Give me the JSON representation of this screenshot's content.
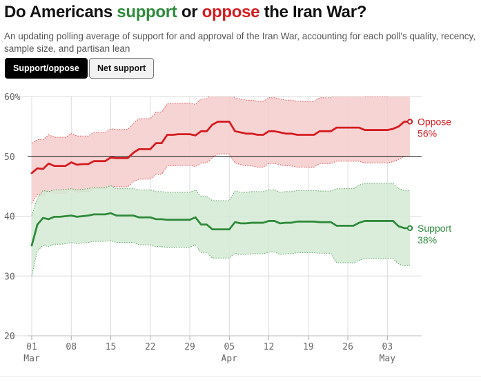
{
  "header": {
    "title_parts": {
      "prefix": "Do Americans ",
      "support_word": "support",
      "middle": " or ",
      "oppose_word": "oppose",
      "suffix": " the Iran War?"
    },
    "subtitle": "An updating polling average of support for and approval of the Iran War, accounting for each poll's quality, recency, sample size, and partisan lean"
  },
  "toggle": {
    "support_oppose_label": "Support/oppose",
    "net_support_label": "Net support",
    "selected": "Support/oppose"
  },
  "colors": {
    "oppose": "#d41c20",
    "support": "#2f8a3b",
    "oppose_band": "#f6cccc",
    "support_band": "#d3ead4"
  },
  "chart_data": {
    "type": "line",
    "x_start_day": "Mar 01",
    "x": [
      "Mar 01",
      "Mar 02",
      "Mar 03",
      "Mar 04",
      "Mar 05",
      "Mar 06",
      "Mar 07",
      "Mar 08",
      "Mar 09",
      "Mar 10",
      "Mar 11",
      "Mar 12",
      "Mar 13",
      "Mar 14",
      "Mar 15",
      "Mar 16",
      "Mar 17",
      "Mar 18",
      "Mar 19",
      "Mar 20",
      "Mar 21",
      "Mar 22",
      "Mar 23",
      "Mar 24",
      "Mar 25",
      "Mar 26",
      "Mar 27",
      "Mar 28",
      "Mar 29",
      "Mar 30",
      "Mar 31",
      "Apr 01",
      "Apr 02",
      "Apr 03",
      "Apr 04",
      "Apr 05",
      "Apr 06",
      "Apr 07",
      "Apr 08",
      "Apr 09",
      "Apr 10",
      "Apr 11",
      "Apr 12",
      "Apr 13",
      "Apr 14",
      "Apr 15",
      "Apr 16",
      "Apr 17",
      "Apr 18",
      "Apr 19",
      "Apr 20",
      "Apr 21",
      "Apr 22",
      "Apr 23",
      "Apr 24",
      "Apr 25",
      "Apr 26",
      "Apr 27",
      "Apr 28",
      "Apr 29",
      "Apr 30",
      "May 01",
      "May 02",
      "May 03",
      "May 04",
      "May 05",
      "May 06",
      "May 07"
    ],
    "ylim": [
      20,
      60
    ],
    "yticks": [
      20,
      30,
      40,
      50,
      60
    ],
    "ytick_labels": [
      "20",
      "30",
      "40",
      "50",
      "60%"
    ],
    "reference_line": 50,
    "xticks": [
      {
        "day": "Mar 01",
        "label": "01",
        "month": "Mar"
      },
      {
        "day": "Mar 08",
        "label": "08",
        "month": ""
      },
      {
        "day": "Mar 15",
        "label": "15",
        "month": ""
      },
      {
        "day": "Mar 22",
        "label": "22",
        "month": ""
      },
      {
        "day": "Mar 29",
        "label": "29",
        "month": ""
      },
      {
        "day": "Apr 05",
        "label": "05",
        "month": "Apr"
      },
      {
        "day": "Apr 12",
        "label": "12",
        "month": ""
      },
      {
        "day": "Apr 19",
        "label": "19",
        "month": ""
      },
      {
        "day": "Apr 26",
        "label": "26",
        "month": ""
      },
      {
        "day": "May 03",
        "label": "03",
        "month": "May"
      }
    ],
    "series": [
      {
        "name": "Oppose",
        "end_label": "56%",
        "values": [
          47.2,
          48.0,
          47.9,
          48.8,
          48.4,
          48.4,
          48.4,
          49.0,
          48.6,
          48.7,
          48.7,
          49.2,
          49.2,
          49.2,
          49.8,
          49.7,
          49.7,
          49.7,
          50.6,
          51.2,
          51.2,
          51.2,
          52.2,
          52.2,
          53.6,
          53.6,
          53.7,
          53.7,
          53.7,
          53.5,
          54.2,
          54.2,
          55.3,
          55.8,
          55.8,
          55.8,
          54.2,
          54.0,
          53.8,
          53.8,
          53.6,
          53.6,
          54.2,
          54.2,
          54.0,
          53.8,
          53.8,
          53.6,
          53.6,
          53.6,
          53.6,
          54.2,
          54.2,
          54.2,
          54.8,
          54.8,
          54.8,
          54.8,
          54.8,
          54.4,
          54.4,
          54.4,
          54.4,
          54.4,
          54.6,
          55.0,
          55.8,
          55.8
        ],
        "upper": [
          52.2,
          52.8,
          52.8,
          53.6,
          53.2,
          53.2,
          53.2,
          53.8,
          53.4,
          53.4,
          53.4,
          54.0,
          54.0,
          54.0,
          54.6,
          54.5,
          54.5,
          54.5,
          55.5,
          56.3,
          56.3,
          56.3,
          57.4,
          57.4,
          58.8,
          58.8,
          58.9,
          58.9,
          58.9,
          58.7,
          59.6,
          59.6,
          60.8,
          61.2,
          61.2,
          61.2,
          59.8,
          59.6,
          59.4,
          59.4,
          59.2,
          59.2,
          59.8,
          59.8,
          59.6,
          59.4,
          59.4,
          59.2,
          59.2,
          59.2,
          59.2,
          59.8,
          59.8,
          59.8,
          60.4,
          60.4,
          60.4,
          60.4,
          60.4,
          60.0,
          60.0,
          60.0,
          60.0,
          60.0,
          60.2,
          60.6,
          61.2,
          61.2
        ],
        "lower": [
          42.2,
          43.6,
          43.4,
          44.2,
          43.8,
          43.8,
          43.8,
          44.4,
          44.0,
          44.1,
          44.1,
          44.6,
          44.6,
          44.6,
          45.0,
          44.9,
          44.9,
          44.9,
          45.8,
          46.2,
          46.2,
          46.2,
          47.0,
          47.0,
          48.4,
          48.4,
          48.5,
          48.5,
          48.5,
          48.3,
          48.9,
          48.9,
          49.8,
          50.4,
          50.4,
          50.4,
          48.9,
          48.6,
          48.4,
          48.4,
          48.2,
          48.2,
          48.8,
          48.8,
          48.6,
          48.4,
          48.4,
          48.2,
          48.2,
          48.2,
          48.2,
          48.8,
          48.8,
          48.8,
          49.2,
          49.2,
          49.2,
          49.2,
          49.2,
          48.9,
          48.9,
          48.9,
          48.9,
          48.9,
          49.1,
          49.5,
          50.0,
          50.0
        ]
      },
      {
        "name": "Support",
        "end_label": "38%",
        "values": [
          35.1,
          38.6,
          39.7,
          39.5,
          39.9,
          39.9,
          40.0,
          40.1,
          39.9,
          40.0,
          40.1,
          40.3,
          40.3,
          40.3,
          40.5,
          40.1,
          40.1,
          40.1,
          40.1,
          39.8,
          39.8,
          39.8,
          39.5,
          39.5,
          39.4,
          39.4,
          39.4,
          39.4,
          39.4,
          39.8,
          38.6,
          38.6,
          37.8,
          37.8,
          37.8,
          37.8,
          39.0,
          38.8,
          38.8,
          38.9,
          38.9,
          38.9,
          39.2,
          39.2,
          38.8,
          38.9,
          38.9,
          39.1,
          39.1,
          39.1,
          39.1,
          39.0,
          39.0,
          39.0,
          38.4,
          38.4,
          38.4,
          38.4,
          38.9,
          39.2,
          39.2,
          39.2,
          39.2,
          39.2,
          39.2,
          38.3,
          38.0,
          38.0
        ],
        "upper": [
          40.1,
          43.0,
          44.3,
          44.1,
          44.4,
          44.4,
          44.5,
          44.6,
          44.4,
          44.5,
          44.6,
          44.8,
          44.8,
          44.8,
          45.1,
          44.6,
          44.6,
          44.6,
          44.6,
          44.4,
          44.4,
          44.4,
          44.1,
          44.1,
          44.0,
          44.0,
          44.0,
          44.0,
          44.0,
          44.4,
          43.3,
          43.3,
          42.6,
          42.6,
          42.6,
          42.6,
          44.2,
          44.0,
          44.0,
          44.1,
          44.1,
          44.1,
          44.4,
          44.4,
          44.0,
          44.1,
          44.1,
          44.3,
          44.3,
          44.3,
          44.3,
          44.2,
          44.2,
          44.2,
          44.6,
          44.6,
          44.6,
          44.6,
          45.2,
          45.5,
          45.5,
          45.5,
          45.5,
          45.5,
          45.5,
          44.6,
          44.3,
          44.3
        ],
        "lower": [
          30.0,
          34.2,
          35.1,
          34.9,
          35.3,
          35.3,
          35.4,
          35.6,
          35.4,
          35.5,
          35.6,
          35.8,
          35.8,
          35.8,
          35.9,
          35.6,
          35.6,
          35.6,
          35.6,
          35.2,
          35.2,
          35.2,
          34.9,
          34.9,
          34.8,
          34.8,
          34.8,
          34.8,
          34.8,
          35.2,
          33.9,
          33.9,
          33.0,
          33.0,
          33.0,
          33.0,
          33.8,
          33.6,
          33.6,
          33.7,
          33.7,
          33.7,
          34.0,
          34.0,
          33.6,
          33.7,
          33.7,
          33.9,
          33.9,
          33.9,
          33.9,
          33.8,
          33.8,
          33.8,
          32.2,
          32.2,
          32.2,
          32.2,
          32.6,
          32.9,
          32.9,
          32.9,
          32.9,
          32.9,
          32.9,
          32.0,
          31.7,
          31.7
        ]
      }
    ]
  }
}
